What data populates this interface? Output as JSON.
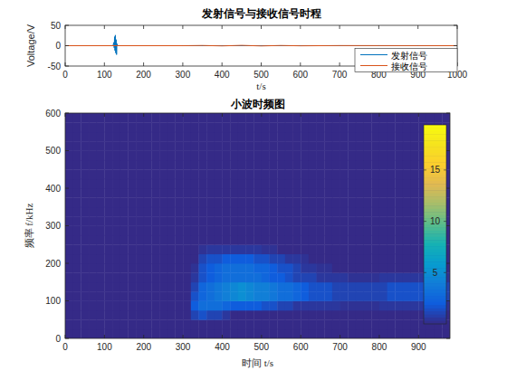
{
  "chart_data": [
    {
      "type": "line",
      "title": "发射信号与接收信号时程",
      "x_label": "t/s",
      "y_label": "Voltage/V",
      "xlim": [
        0,
        1000
      ],
      "ylim": [
        -50,
        50
      ],
      "xticks": [
        0,
        100,
        200,
        300,
        400,
        500,
        600,
        700,
        800,
        900,
        1000
      ],
      "yticks": [
        -50,
        0,
        50
      ],
      "legend": "lower right",
      "series": [
        {
          "name": "发射信号",
          "color": "#0072bd",
          "x": [
            0,
            122,
            124,
            125,
            126,
            127,
            128,
            129,
            130,
            131,
            132,
            134,
            1000
          ],
          "values": [
            0,
            0,
            8,
            -5,
            22,
            -12,
            26,
            -18,
            15,
            -22,
            5,
            0,
            0
          ]
        },
        {
          "name": "接收信号",
          "color": "#d95319",
          "x": [
            0,
            300,
            350,
            400,
            450,
            500,
            550,
            600,
            700,
            800,
            900,
            1000
          ],
          "values": [
            0,
            0,
            0.5,
            -0.5,
            0.8,
            -0.6,
            0.5,
            -0.3,
            0.3,
            0.2,
            0.1,
            0
          ]
        }
      ]
    },
    {
      "type": "heatmap",
      "title": "小波时频图",
      "x_label": "时间 t/s",
      "y_label": "频率 f/kHz",
      "xlim": [
        0,
        980
      ],
      "ylim": [
        0,
        600
      ],
      "xticks": [
        0,
        100,
        200,
        300,
        400,
        500,
        600,
        700,
        800,
        900
      ],
      "yticks": [
        0,
        100,
        200,
        300,
        400,
        500,
        600
      ],
      "x_edges": [
        0,
        20,
        40,
        60,
        80,
        100,
        120,
        140,
        160,
        180,
        200,
        220,
        240,
        260,
        280,
        300,
        320,
        340,
        360,
        380,
        400,
        420,
        440,
        460,
        480,
        500,
        520,
        540,
        560,
        580,
        600,
        620,
        640,
        660,
        680,
        700,
        720,
        740,
        760,
        780,
        800,
        820,
        840,
        860,
        880,
        900,
        920,
        940,
        960,
        980
      ],
      "y_edges": [
        0,
        25,
        50,
        75,
        100,
        125,
        150,
        175,
        200,
        225,
        250,
        275,
        300,
        325,
        350,
        375,
        400,
        425,
        450,
        475,
        500,
        525,
        550,
        575,
        600
      ],
      "cells": [
        [
          0,
          0,
          0,
          0,
          0,
          0,
          0,
          0,
          0,
          0,
          0,
          0,
          0,
          0,
          0,
          0,
          0,
          0,
          0,
          0,
          0,
          0,
          0,
          0,
          0,
          0,
          0,
          0,
          0,
          0,
          0,
          0,
          0,
          0,
          0,
          0,
          0,
          0,
          0,
          0,
          0,
          0,
          0,
          0,
          0,
          0,
          0,
          0,
          0
        ],
        [
          0,
          0,
          0,
          0,
          0,
          0,
          0,
          0,
          0,
          0,
          0,
          0,
          0,
          0,
          0,
          0,
          0,
          0,
          0,
          0,
          0,
          0,
          0,
          0,
          0,
          0,
          0,
          0,
          0,
          0,
          0,
          0,
          0,
          0,
          0,
          0,
          0,
          0,
          0,
          0,
          0,
          0,
          0,
          0,
          0,
          0,
          0,
          0,
          0
        ],
        [
          0,
          0,
          0,
          0,
          0,
          0,
          0,
          0,
          0,
          0,
          0,
          0,
          0,
          0,
          0,
          0,
          1,
          1.5,
          1,
          1,
          0.5,
          0,
          0,
          0,
          0,
          0,
          0,
          0,
          0,
          0,
          0,
          0,
          0,
          0,
          0,
          0,
          0,
          0,
          0,
          0,
          0,
          0,
          0,
          0,
          0,
          0,
          0,
          0,
          0
        ],
        [
          0,
          0,
          0,
          0,
          0,
          0,
          0,
          0,
          0,
          0,
          0,
          0,
          0,
          0,
          0,
          0,
          2,
          3,
          3,
          3,
          2.5,
          2,
          2,
          2,
          2,
          1.5,
          1.5,
          1,
          1,
          0.5,
          0.5,
          0.5,
          0.5,
          0.5,
          0.5,
          0.3,
          0.3,
          0.3,
          0.3,
          0.3,
          0.5,
          0.5,
          0.5,
          0.5,
          0.5,
          0.5,
          0.5,
          0.5,
          0.3
        ],
        [
          0,
          0,
          0,
          0,
          0,
          0,
          0,
          0,
          0,
          0,
          0,
          0,
          0,
          0,
          0,
          0,
          1.5,
          2.5,
          3,
          3.5,
          4,
          4.5,
          5,
          4.5,
          4,
          4,
          3.5,
          3,
          3,
          2.5,
          2,
          1.5,
          1.5,
          1.5,
          1,
          1,
          1,
          1,
          1,
          1,
          1,
          1.5,
          1.5,
          1.5,
          1.5,
          1.5,
          1.5,
          1.5,
          1
        ],
        [
          0,
          0,
          0,
          0,
          0,
          0,
          0,
          0,
          0,
          0,
          0,
          0,
          0,
          0,
          0,
          0,
          1,
          2.5,
          3,
          3.5,
          4,
          4.5,
          5,
          4.5,
          4,
          4,
          3.5,
          3,
          3,
          2.5,
          2,
          1.5,
          1.5,
          1.5,
          1,
          1,
          1,
          1,
          1,
          1,
          1,
          1.5,
          1.5,
          1.5,
          1.5,
          1.5,
          1.5,
          1.5,
          1
        ],
        [
          0,
          0,
          0,
          0,
          0,
          0,
          0,
          0,
          0,
          0,
          0,
          0,
          0,
          0,
          0,
          0,
          0.5,
          1.5,
          2,
          2.5,
          3,
          3,
          3,
          3,
          3,
          2.5,
          2,
          2,
          1.5,
          1,
          1,
          1,
          0.5,
          0.5,
          0.5,
          0.5,
          0.3,
          0.3,
          0.3,
          0.3,
          0.5,
          0.5,
          0.5,
          0.5,
          0.5,
          0.5,
          0.5,
          0.5,
          0.3
        ],
        [
          0,
          0,
          0,
          0,
          0,
          0,
          0,
          0,
          0,
          0,
          0,
          0,
          0,
          0,
          0,
          0,
          0.3,
          1.5,
          2,
          2.5,
          3,
          3,
          3,
          3,
          2.5,
          2.5,
          2,
          1.5,
          1.5,
          1,
          0.5,
          0.5,
          0.3,
          0.3,
          0,
          0,
          0,
          0,
          0,
          0,
          0,
          0,
          0,
          0,
          0,
          0,
          0,
          0,
          0
        ],
        [
          0,
          0,
          0,
          0,
          0,
          0,
          0,
          0,
          0,
          0,
          0,
          0,
          0,
          0,
          0,
          0,
          0,
          1,
          1.5,
          1.5,
          2,
          2,
          2,
          2,
          1.5,
          1.5,
          1,
          1,
          0.5,
          0.5,
          0.3,
          0,
          0,
          0,
          0,
          0,
          0,
          0,
          0,
          0,
          0,
          0,
          0,
          0,
          0,
          0,
          0,
          0,
          0
        ],
        [
          0,
          0,
          0,
          0,
          0,
          0,
          0,
          0,
          0,
          0,
          0,
          0,
          0,
          0,
          0,
          0,
          0,
          0.3,
          0.5,
          0.5,
          0.5,
          0.5,
          0.5,
          0.5,
          0.5,
          0.3,
          0.3,
          0,
          0,
          0,
          0,
          0,
          0,
          0,
          0,
          0,
          0,
          0,
          0,
          0,
          0,
          0,
          0,
          0,
          0,
          0,
          0,
          0,
          0
        ],
        [
          0,
          0,
          0,
          0,
          0,
          0,
          0,
          0,
          0,
          0,
          0,
          0,
          0,
          0,
          0,
          0,
          0,
          0,
          0,
          0,
          0,
          0,
          0,
          0,
          0,
          0,
          0,
          0,
          0,
          0,
          0,
          0,
          0,
          0,
          0,
          0,
          0,
          0,
          0,
          0,
          0,
          0,
          0,
          0,
          0,
          0,
          0,
          0,
          0
        ],
        [
          0,
          0,
          0,
          0,
          0,
          0,
          0,
          0,
          0,
          0,
          0,
          0,
          0,
          0,
          0,
          0,
          0,
          0,
          0,
          0,
          0,
          0,
          0,
          0,
          0,
          0,
          0,
          0,
          0,
          0,
          0,
          0,
          0,
          0,
          0,
          0,
          0,
          0,
          0,
          0,
          0,
          0,
          0,
          0,
          0,
          0,
          0,
          0,
          0
        ],
        [
          0,
          0,
          0,
          0,
          0,
          0,
          0,
          0,
          0,
          0,
          0,
          0,
          0,
          0,
          0,
          0,
          0,
          0,
          0,
          0,
          0,
          0,
          0,
          0,
          0,
          0,
          0,
          0,
          0,
          0,
          0,
          0,
          0,
          0,
          0,
          0,
          0,
          0,
          0,
          0,
          0,
          0,
          0,
          0,
          0,
          0,
          0,
          0,
          0
        ],
        [
          0,
          0,
          0,
          0,
          0,
          0,
          0,
          0,
          0,
          0,
          0,
          0,
          0,
          0,
          0,
          0,
          0,
          0,
          0,
          0,
          0,
          0,
          0,
          0,
          0,
          0,
          0,
          0,
          0,
          0,
          0,
          0,
          0,
          0,
          0,
          0,
          0,
          0,
          0,
          0,
          0,
          0,
          0,
          0,
          0,
          0,
          0,
          0,
          0
        ],
        [
          0,
          0,
          0,
          0,
          0,
          0,
          0,
          0,
          0,
          0,
          0,
          0,
          0,
          0,
          0,
          0,
          0,
          0,
          0,
          0,
          0,
          0,
          0,
          0,
          0,
          0,
          0,
          0,
          0,
          0,
          0,
          0,
          0,
          0,
          0,
          0,
          0,
          0,
          0,
          0,
          0,
          0,
          0,
          0,
          0,
          0,
          0,
          0,
          0
        ],
        [
          0,
          0,
          0,
          0,
          0,
          0,
          0,
          0,
          0,
          0,
          0,
          0,
          0,
          0,
          0,
          0,
          0,
          0,
          0,
          0,
          0,
          0,
          0,
          0,
          0,
          0,
          0,
          0,
          0,
          0,
          0,
          0,
          0,
          0,
          0,
          0,
          0,
          0,
          0,
          0,
          0,
          0,
          0,
          0,
          0,
          0,
          0,
          0,
          0
        ],
        [
          0,
          0,
          0,
          0,
          0,
          0,
          0,
          0,
          0,
          0,
          0,
          0,
          0,
          0,
          0,
          0,
          0,
          0,
          0,
          0,
          0,
          0,
          0,
          0,
          0,
          0,
          0,
          0,
          0,
          0,
          0,
          0,
          0,
          0,
          0,
          0,
          0,
          0,
          0,
          0,
          0,
          0,
          0,
          0,
          0,
          0,
          0,
          0,
          0
        ],
        [
          0,
          0,
          0,
          0,
          0,
          0,
          0,
          0,
          0,
          0,
          0,
          0,
          0,
          0,
          0,
          0,
          0,
          0,
          0,
          0,
          0,
          0,
          0,
          0,
          0,
          0,
          0,
          0,
          0,
          0,
          0,
          0,
          0,
          0,
          0,
          0,
          0,
          0,
          0,
          0,
          0,
          0,
          0,
          0,
          0,
          0,
          0,
          0,
          0
        ],
        [
          0,
          0,
          0,
          0,
          0,
          0,
          0,
          0,
          0,
          0,
          0,
          0,
          0,
          0,
          0,
          0,
          0,
          0,
          0,
          0,
          0,
          0,
          0,
          0,
          0,
          0,
          0,
          0,
          0,
          0,
          0,
          0,
          0,
          0,
          0,
          0,
          0,
          0,
          0,
          0,
          0,
          0,
          0,
          0,
          0,
          0,
          0,
          0,
          0
        ],
        [
          0,
          0,
          0,
          0,
          0,
          0,
          0,
          0,
          0,
          0,
          0,
          0,
          0,
          0,
          0,
          0,
          0,
          0,
          0,
          0,
          0,
          0,
          0,
          0,
          0,
          0,
          0,
          0,
          0,
          0,
          0,
          0,
          0,
          0,
          0,
          0,
          0,
          0,
          0,
          0,
          0,
          0,
          0,
          0,
          0,
          0,
          0,
          0,
          0
        ],
        [
          0,
          0,
          0,
          0,
          0,
          0,
          0,
          0,
          0,
          0,
          0,
          0,
          0,
          0,
          0,
          0,
          0,
          0,
          0,
          0,
          0,
          0,
          0,
          0,
          0,
          0,
          0,
          0,
          0,
          0,
          0,
          0,
          0,
          0,
          0,
          0,
          0,
          0,
          0,
          0,
          0,
          0,
          0,
          0,
          0,
          0,
          0,
          0,
          0
        ],
        [
          0,
          0,
          0,
          0,
          0,
          0,
          0,
          0,
          0,
          0,
          0,
          0,
          0,
          0,
          0,
          0,
          0,
          0,
          0,
          0,
          0,
          0,
          0,
          0,
          0,
          0,
          0,
          0,
          0,
          0,
          0,
          0,
          0,
          0,
          0,
          0,
          0,
          0,
          0,
          0,
          0,
          0,
          0,
          0,
          0,
          0,
          0,
          0,
          0
        ],
        [
          0,
          0,
          0,
          0,
          0,
          0,
          0,
          0,
          0,
          0,
          0,
          0,
          0,
          0,
          0,
          0,
          0,
          0,
          0,
          0,
          0,
          0,
          0,
          0,
          0,
          0,
          0,
          0,
          0,
          0,
          0,
          0,
          0,
          0,
          0,
          0,
          0,
          0,
          0,
          0,
          0,
          0,
          0,
          0,
          0,
          0,
          0,
          0,
          0
        ],
        [
          0,
          0,
          0,
          0,
          0,
          0,
          0,
          0,
          0,
          0,
          0,
          0,
          0,
          0,
          0,
          0,
          0,
          0,
          0,
          0,
          0,
          0,
          0,
          0,
          0,
          0,
          0,
          0,
          0,
          0,
          0,
          0,
          0,
          0,
          0,
          0,
          0,
          0,
          0,
          0,
          0,
          0,
          0,
          0,
          0,
          0,
          0,
          0,
          0
        ]
      ],
      "color_range": [
        0,
        19.4
      ],
      "color_ticks": [
        5,
        10,
        15
      ]
    }
  ]
}
